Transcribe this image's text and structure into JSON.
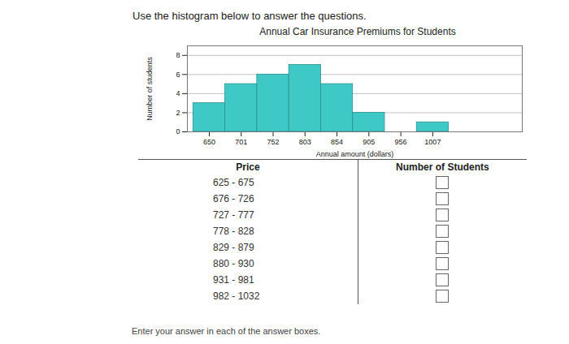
{
  "chart_data": {
    "type": "histogram",
    "title": "Annual Car Insurance Premiums for Students",
    "x_label": "Annual amount (dollars)",
    "y_label": "Number of students",
    "bins": [
      624.5,
      675.5,
      726.5,
      777.5,
      828.5,
      879.5,
      930.5,
      981.5,
      1032.5
    ],
    "values": [
      3,
      5,
      6,
      7,
      5,
      2,
      0,
      1
    ],
    "color": "#3fc9c6",
    "xlim": [
      615,
      1150
    ],
    "xticks": [
      650,
      701,
      752,
      803,
      854,
      905,
      956,
      1007
    ],
    "ylim": [
      0,
      9
    ],
    "yticks": [
      0,
      2,
      4,
      6,
      8
    ],
    "grid": true
  },
  "instruction": "Use the histogram below to answer the questions.",
  "table": {
    "header": [
      "Price",
      "Number of Students"
    ],
    "rows": [
      "625 - 675",
      "676 - 726",
      "727 - 777",
      "778 - 828",
      "829 - 879",
      "880 - 930",
      "931 - 981",
      "982 - 1032"
    ]
  },
  "footer": "Enter your answer in each of the answer boxes."
}
